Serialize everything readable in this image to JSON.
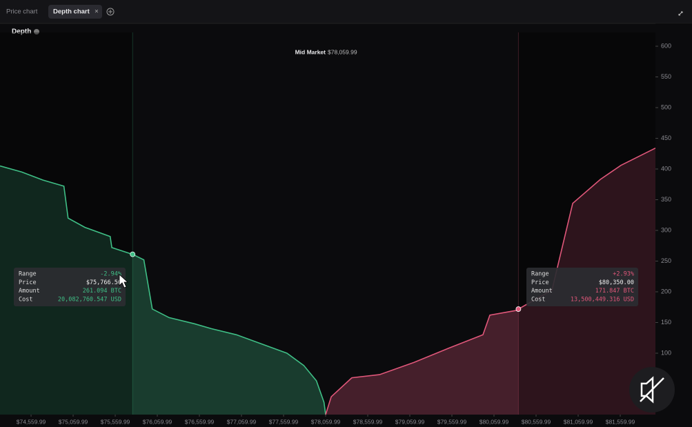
{
  "tabs": [
    "Price chart",
    "Depth chart"
  ],
  "chart_data": {
    "type": "depth",
    "title": "Depth",
    "mid_label": "Mid Market",
    "mid_value": "$78,059.99",
    "xlim": [
      74191,
      81978
    ],
    "ylim": [
      0,
      600
    ],
    "yticks": [
      100,
      150,
      200,
      250,
      300,
      350,
      400,
      450,
      500,
      550,
      600
    ],
    "xticks": [
      {
        "value": 74559.99,
        "label": "$74,559.99"
      },
      {
        "value": 75059.99,
        "label": "$75,059.99"
      },
      {
        "value": 75559.99,
        "label": "$75,559.99"
      },
      {
        "value": 76059.99,
        "label": "$76,059.99"
      },
      {
        "value": 76559.99,
        "label": "$76,559.99"
      },
      {
        "value": 77059.99,
        "label": "$77,059.99"
      },
      {
        "value": 77559.99,
        "label": "$77,559.99"
      },
      {
        "value": 78059.99,
        "label": "$78,059.99"
      },
      {
        "value": 78559.99,
        "label": "$78,559.99"
      },
      {
        "value": 79059.99,
        "label": "$79,059.99"
      },
      {
        "value": 79559.99,
        "label": "$79,559.99"
      },
      {
        "value": 80059.99,
        "label": "$80,059.99"
      },
      {
        "value": 80559.99,
        "label": "$80,559.99"
      },
      {
        "value": 81059.99,
        "label": "$81,059.99"
      },
      {
        "value": 81559.99,
        "label": "$81,559.99"
      }
    ],
    "bids": {
      "color": "#3fbf86",
      "x": [
        74191,
        74450,
        74700,
        74950,
        75000,
        75200,
        75500,
        75520,
        75766.5,
        75900,
        76000,
        76200,
        76500,
        76700,
        77000,
        77300,
        77600,
        77800,
        77950,
        78040,
        78060
      ],
      "values": [
        405,
        395,
        382,
        372,
        320,
        305,
        290,
        272,
        261,
        252,
        172,
        158,
        148,
        140,
        130,
        115,
        100,
        80,
        55,
        20,
        0
      ]
    },
    "asks": {
      "color": "#e0577a",
      "x": [
        78060,
        78126,
        78371,
        78700,
        79109,
        79519,
        79929,
        80011,
        80339,
        80350,
        80749,
        80995,
        81323,
        81568,
        81978
      ],
      "values": [
        0,
        29,
        60,
        65,
        85,
        108,
        130,
        162,
        170,
        171.847,
        203,
        344,
        383,
        406,
        434
      ]
    },
    "tooltips": [
      {
        "x": 75766.5,
        "y": 261.094,
        "rows": [
          {
            "label": "Range",
            "value": "-2.94%"
          },
          {
            "label": "Price",
            "value": "$75,766.50"
          },
          {
            "label": "Amount",
            "value": "261.094 BTC"
          },
          {
            "label": "Cost",
            "value": "20,082,760.547 USD"
          }
        ]
      },
      {
        "x": 80350,
        "y": 171.847,
        "rows": [
          {
            "label": "Range",
            "value": "+2.93%"
          },
          {
            "label": "Price",
            "value": "$80,350.00"
          },
          {
            "label": "Amount",
            "value": "171.847 BTC"
          },
          {
            "label": "Cost",
            "value": "13,500,449.316 USD"
          }
        ]
      }
    ]
  }
}
